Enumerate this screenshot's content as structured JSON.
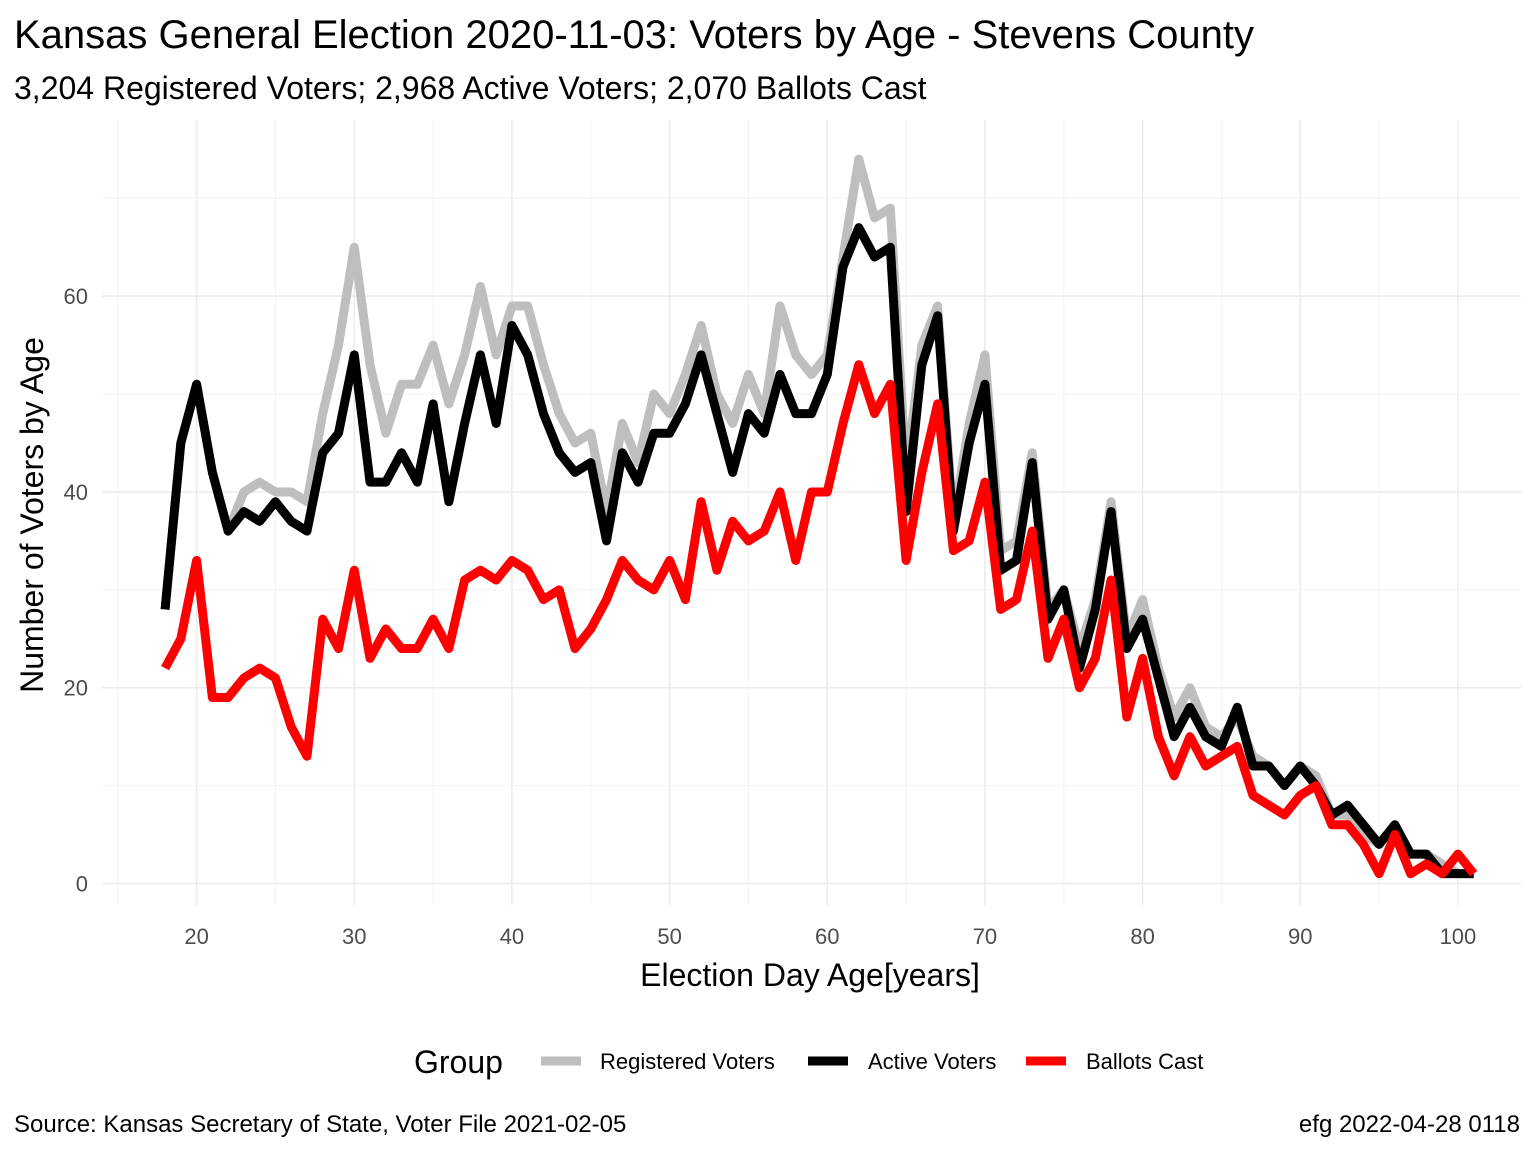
{
  "chart_data": {
    "type": "line",
    "title": "Kansas General Election 2020-11-03:  Voters by Age - Stevens County",
    "subtitle": "3,204 Registered Voters; 2,968 Active Voters; 2,070 Ballots Cast",
    "xlabel": "Election Day Age[years]",
    "ylabel": "Number of Voters by Age",
    "xlim": [
      14,
      104
    ],
    "ylim": [
      -2.2,
      78
    ],
    "x_ticks": [
      20,
      30,
      40,
      50,
      60,
      70,
      80,
      90,
      100
    ],
    "y_ticks": [
      0,
      20,
      40,
      60
    ],
    "grid": true,
    "legend": {
      "title": "Group",
      "placement": "bottom"
    },
    "caption_left": "Source:  Kansas Secretary of State, Voter File  2021-02-05",
    "caption_right": "efg 2022-04-28 0118",
    "x_start": 18,
    "series": [
      {
        "name": "Registered Voters",
        "color": "#bebebe",
        "values": [
          28,
          45,
          51,
          42,
          36,
          40,
          41,
          40,
          40,
          39,
          48,
          55,
          65,
          53,
          46,
          51,
          51,
          55,
          49,
          54,
          61,
          54,
          59,
          59,
          53,
          48,
          45,
          46,
          38,
          47,
          43,
          50,
          48,
          52,
          57,
          50,
          47,
          52,
          48,
          59,
          54,
          52,
          54,
          64,
          74,
          68,
          69,
          42,
          55,
          59,
          37,
          47,
          54,
          34,
          35,
          44,
          28,
          30,
          24,
          29,
          39,
          25,
          29,
          22,
          17,
          20,
          16,
          15,
          17,
          13,
          12,
          10,
          12,
          11,
          7,
          7,
          5,
          4,
          6,
          3,
          3,
          2,
          1,
          1
        ]
      },
      {
        "name": "Active Voters",
        "color": "#000000",
        "values": [
          28,
          45,
          51,
          42,
          36,
          38,
          37,
          39,
          37,
          36,
          44,
          46,
          54,
          41,
          41,
          44,
          41,
          49,
          39,
          47,
          54,
          47,
          57,
          54,
          48,
          44,
          42,
          43,
          35,
          44,
          41,
          46,
          46,
          49,
          54,
          48,
          42,
          48,
          46,
          52,
          48,
          48,
          52,
          63,
          67,
          64,
          65,
          38,
          53,
          58,
          36,
          45,
          51,
          32,
          33,
          43,
          27,
          30,
          22,
          28,
          38,
          24,
          27,
          21,
          15,
          18,
          15,
          14,
          18,
          12,
          12,
          10,
          12,
          10,
          7,
          8,
          6,
          4,
          6,
          3,
          3,
          1,
          1,
          1
        ]
      },
      {
        "name": "Ballots Cast",
        "color": "#ff0000",
        "values": [
          22,
          25,
          33,
          19,
          19,
          21,
          22,
          21,
          16,
          13,
          27,
          24,
          32,
          23,
          26,
          24,
          24,
          27,
          24,
          31,
          32,
          31,
          33,
          32,
          29,
          30,
          24,
          26,
          29,
          33,
          31,
          30,
          33,
          29,
          39,
          32,
          37,
          35,
          36,
          40,
          33,
          40,
          40,
          47,
          53,
          48,
          51,
          33,
          42,
          49,
          34,
          35,
          41,
          28,
          29,
          36,
          23,
          27,
          20,
          23,
          31,
          17,
          23,
          15,
          11,
          15,
          12,
          13,
          14,
          9,
          8,
          7,
          9,
          10,
          6,
          6,
          4,
          1,
          5,
          1,
          2,
          1,
          3,
          1
        ]
      }
    ]
  }
}
